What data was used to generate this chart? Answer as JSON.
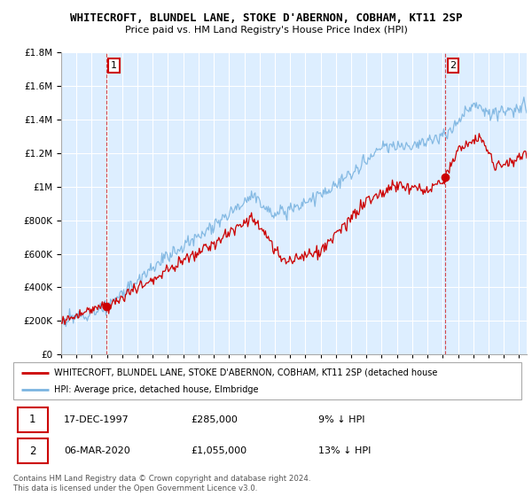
{
  "title": "WHITECROFT, BLUNDEL LANE, STOKE D'ABERNON, COBHAM, KT11 2SP",
  "subtitle": "Price paid vs. HM Land Registry's House Price Index (HPI)",
  "legend_line1": "WHITECROFT, BLUNDEL LANE, STOKE D'ABERNON, COBHAM, KT11 2SP (detached house",
  "legend_line2": "HPI: Average price, detached house, Elmbridge",
  "annotation1_date": "17-DEC-1997",
  "annotation1_price": "£285,000",
  "annotation1_hpi": "9% ↓ HPI",
  "annotation2_date": "06-MAR-2020",
  "annotation2_price": "£1,055,000",
  "annotation2_hpi": "13% ↓ HPI",
  "footer": "Contains HM Land Registry data © Crown copyright and database right 2024.\nThis data is licensed under the Open Government Licence v3.0.",
  "sale1_year": 1997.958,
  "sale1_value": 285000,
  "sale2_year": 2020.167,
  "sale2_value": 1055000,
  "hpi_color": "#7bb4e0",
  "price_color": "#cc0000",
  "dashed_color": "#cc0000",
  "bg_color": "#ddeeff",
  "ylim_max": 1800000,
  "ylim_min": 0,
  "start_year": 1995,
  "end_year": 2025.5
}
